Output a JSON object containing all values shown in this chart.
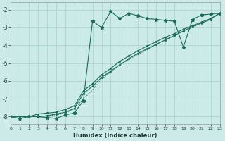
{
  "xlabel": "Humidex (Indice chaleur)",
  "bg_color": "#cceae7",
  "grid_color": "#aad4d0",
  "line_color": "#1a6b5a",
  "xlim": [
    0,
    23
  ],
  "ylim": [
    -8.4,
    -1.6
  ],
  "yticks": [
    -8,
    -7,
    -6,
    -5,
    -4,
    -3,
    -2
  ],
  "xticks": [
    0,
    1,
    2,
    3,
    4,
    5,
    6,
    7,
    8,
    9,
    10,
    11,
    12,
    13,
    14,
    15,
    16,
    17,
    18,
    19,
    20,
    21,
    22,
    23
  ],
  "series1_x": [
    0,
    1,
    2,
    3,
    4,
    5,
    6,
    7,
    8,
    9,
    10,
    11,
    12,
    13,
    14,
    15,
    16,
    17,
    18,
    19,
    20,
    21,
    22,
    23
  ],
  "series1_y": [
    -8.0,
    -8.1,
    -8.0,
    -8.0,
    -8.05,
    -8.1,
    -7.9,
    -7.8,
    -7.1,
    -2.65,
    -3.0,
    -2.1,
    -2.5,
    -2.2,
    -2.35,
    -2.5,
    -2.55,
    -2.6,
    -2.65,
    -4.1,
    -2.55,
    -2.3,
    -2.25,
    -2.2
  ],
  "series2_x": [
    0,
    1,
    2,
    3,
    4,
    5,
    6,
    7,
    8,
    9,
    10,
    11,
    12,
    13,
    14,
    15,
    16,
    17,
    18,
    19,
    20,
    21,
    22,
    23
  ],
  "series2_y": [
    -8.0,
    -8.0,
    -8.0,
    -7.85,
    -7.8,
    -7.75,
    -7.6,
    -7.4,
    -6.55,
    -6.15,
    -5.65,
    -5.3,
    -4.9,
    -4.6,
    -4.3,
    -4.05,
    -3.8,
    -3.55,
    -3.35,
    -3.1,
    -2.9,
    -2.7,
    -2.5,
    -2.2
  ],
  "series3_x": [
    0,
    1,
    2,
    3,
    4,
    5,
    6,
    7,
    8,
    9,
    10,
    11,
    12,
    13,
    14,
    15,
    16,
    17,
    18,
    19,
    20,
    21,
    22,
    23
  ],
  "series3_y": [
    -8.0,
    -8.0,
    -8.0,
    -8.0,
    -7.95,
    -7.85,
    -7.75,
    -7.55,
    -6.7,
    -6.3,
    -5.8,
    -5.45,
    -5.1,
    -4.75,
    -4.45,
    -4.2,
    -3.95,
    -3.7,
    -3.45,
    -3.2,
    -2.95,
    -2.75,
    -2.55,
    -2.2
  ],
  "series4_x": [
    0,
    1,
    2,
    3,
    4,
    5,
    6,
    7,
    8,
    9,
    10,
    11,
    12,
    13,
    14,
    15,
    16,
    17,
    18,
    19,
    20,
    21,
    22,
    23
  ],
  "series4_y": [
    -8.0,
    -8.0,
    -8.0,
    -8.0,
    -7.95,
    -7.9,
    -7.8,
    -7.55,
    -7.0,
    -6.5,
    -5.9,
    -5.5,
    -5.1,
    -4.8,
    -4.5,
    -4.25,
    -3.95,
    -3.7,
    -3.5,
    -3.2,
    -3.0,
    -2.75,
    -2.55,
    -2.2
  ]
}
